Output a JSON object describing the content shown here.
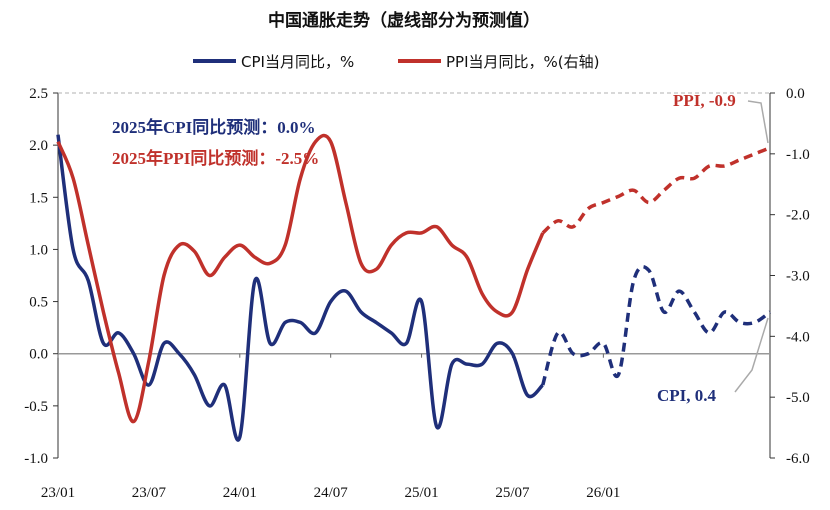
{
  "chart_data": {
    "type": "line",
    "title": "中国通胀走势（虚线部分为预测值）",
    "legend": [
      "CPI当月同比，%",
      "PPI当月同比，%(右轴)"
    ],
    "legend_position": "top",
    "x_ticks": [
      "23/01",
      "23/07",
      "24/01",
      "24/07",
      "25/01",
      "25/07",
      "26/01"
    ],
    "x_range": [
      "2023-01",
      "2026-12"
    ],
    "y_left_ticks": [
      "2.5",
      "2.0",
      "1.5",
      "1.0",
      "0.5",
      "0.0",
      "-0.5",
      "-1.0"
    ],
    "y_left_range": [
      -1.0,
      2.5
    ],
    "y_right_ticks": [
      "0.0",
      "-1.0",
      "-2.0",
      "-3.0",
      "-4.0",
      "-5.0",
      "-6.0"
    ],
    "y_right_range": [
      -6.0,
      0.0
    ],
    "grid": false,
    "colors": {
      "cpi": "#1f2f7a",
      "ppi": "#c0312b",
      "zero_line": "#999999"
    },
    "annotations": {
      "cpi_forecast": "2025年CPI同比预测：0.0%",
      "ppi_forecast": "2025年PPI同比预测：-2.5%",
      "ppi_end": "PPI, -0.9",
      "cpi_end": "CPI, 0.4"
    },
    "series": [
      {
        "id": "cpi",
        "axis": "left",
        "dates": [
          "2023-01",
          "2023-02",
          "2023-03",
          "2023-04",
          "2023-05",
          "2023-06",
          "2023-07",
          "2023-08",
          "2023-09",
          "2023-10",
          "2023-11",
          "2023-12",
          "2024-01",
          "2024-02",
          "2024-03",
          "2024-04",
          "2024-05",
          "2024-06",
          "2024-07",
          "2024-08",
          "2024-09",
          "2024-10",
          "2024-11",
          "2024-12",
          "2025-01",
          "2025-02",
          "2025-03",
          "2025-04",
          "2025-05",
          "2025-06",
          "2025-07",
          "2025-08",
          "2025-09"
        ],
        "values": [
          2.1,
          1.0,
          0.7,
          0.1,
          0.2,
          0.0,
          -0.3,
          0.1,
          0.0,
          -0.2,
          -0.5,
          -0.3,
          -0.8,
          0.7,
          0.1,
          0.3,
          0.3,
          0.2,
          0.5,
          0.6,
          0.4,
          0.3,
          0.2,
          0.1,
          0.5,
          -0.7,
          -0.1,
          -0.1,
          -0.1,
          0.1,
          0.0,
          -0.4,
          -0.3
        ],
        "forecast_dates": [
          "2025-09",
          "2025-10",
          "2025-11",
          "2025-12",
          "2026-01",
          "2026-02",
          "2026-03",
          "2026-04",
          "2026-05",
          "2026-06",
          "2026-07",
          "2026-08",
          "2026-09",
          "2026-10",
          "2026-11",
          "2026-12"
        ],
        "forecast_values": [
          -0.3,
          0.2,
          0.0,
          0.0,
          0.1,
          -0.2,
          0.7,
          0.8,
          0.4,
          0.6,
          0.4,
          0.2,
          0.4,
          0.3,
          0.3,
          0.4
        ]
      },
      {
        "id": "ppi",
        "axis": "right",
        "dates": [
          "2023-01",
          "2023-02",
          "2023-03",
          "2023-04",
          "2023-05",
          "2023-06",
          "2023-07",
          "2023-08",
          "2023-09",
          "2023-10",
          "2023-11",
          "2023-12",
          "2024-01",
          "2024-02",
          "2024-03",
          "2024-04",
          "2024-05",
          "2024-06",
          "2024-07",
          "2024-08",
          "2024-09",
          "2024-10",
          "2024-11",
          "2024-12",
          "2025-01",
          "2025-02",
          "2025-03",
          "2025-04",
          "2025-05",
          "2025-06",
          "2025-07",
          "2025-08",
          "2025-09"
        ],
        "values": [
          -0.8,
          -1.4,
          -2.5,
          -3.6,
          -4.6,
          -5.4,
          -4.4,
          -3.0,
          -2.5,
          -2.6,
          -3.0,
          -2.7,
          -2.5,
          -2.7,
          -2.8,
          -2.5,
          -1.4,
          -0.8,
          -0.8,
          -1.8,
          -2.8,
          -2.9,
          -2.5,
          -2.3,
          -2.3,
          -2.2,
          -2.5,
          -2.7,
          -3.3,
          -3.6,
          -3.6,
          -2.9,
          -2.3
        ],
        "forecast_dates": [
          "2025-09",
          "2025-10",
          "2025-11",
          "2025-12",
          "2026-01",
          "2026-02",
          "2026-03",
          "2026-04",
          "2026-05",
          "2026-06",
          "2026-07",
          "2026-08",
          "2026-09",
          "2026-10",
          "2026-11",
          "2026-12"
        ],
        "forecast_values": [
          -2.3,
          -2.1,
          -2.2,
          -1.9,
          -1.8,
          -1.7,
          -1.6,
          -1.8,
          -1.6,
          -1.4,
          -1.4,
          -1.2,
          -1.2,
          -1.1,
          -1.0,
          -0.9
        ]
      }
    ]
  }
}
